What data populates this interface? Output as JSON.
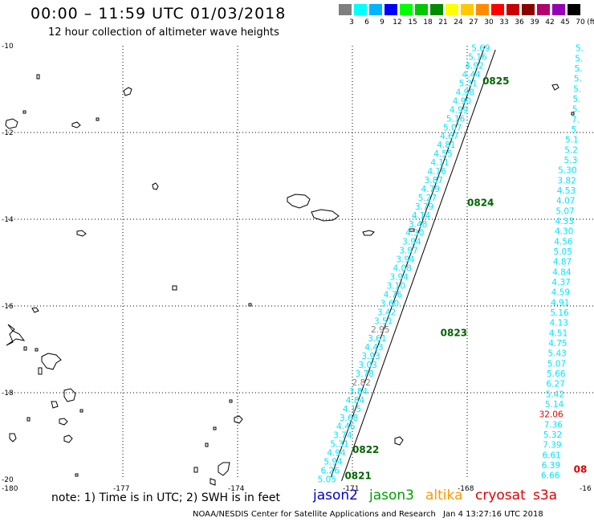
{
  "header": {
    "title": "00:00 – 11:59 UTC 01/03/2018",
    "subtitle": "12 hour collection of altimeter wave heights"
  },
  "legend": {
    "unit": "(ft)",
    "bins": [
      {
        "label": "3",
        "color": "#7f7f7f"
      },
      {
        "label": "6",
        "color": "#00ffff"
      },
      {
        "label": "9",
        "color": "#00b4ff"
      },
      {
        "label": "12",
        "color": "#0000ff"
      },
      {
        "label": "15",
        "color": "#00ff00"
      },
      {
        "label": "18",
        "color": "#00c800"
      },
      {
        "label": "21",
        "color": "#008c00"
      },
      {
        "label": "24",
        "color": "#ffff00"
      },
      {
        "label": "27",
        "color": "#ffc800"
      },
      {
        "label": "30",
        "color": "#ff8c00"
      },
      {
        "label": "33",
        "color": "#ff0000"
      },
      {
        "label": "36",
        "color": "#c80000"
      },
      {
        "label": "39",
        "color": "#8c0000"
      },
      {
        "label": "42",
        "color": "#b4006e"
      },
      {
        "label": "45",
        "color": "#9600b4"
      },
      {
        "label": "70",
        "color": "#000000"
      }
    ]
  },
  "axes": {
    "lon_ticks": [
      {
        "lon": -180,
        "label": "-180"
      },
      {
        "lon": -177,
        "label": "-177"
      },
      {
        "lon": -174,
        "label": "-174"
      },
      {
        "lon": -171,
        "label": "-171"
      },
      {
        "lon": -168,
        "label": "-168"
      },
      {
        "lon": -165,
        "label": "-16"
      }
    ],
    "lat_ticks": [
      {
        "lat": -10,
        "label": "-10"
      },
      {
        "lat": -12,
        "label": "-12"
      },
      {
        "lat": -14,
        "label": "-14"
      },
      {
        "lat": -16,
        "label": "-16"
      },
      {
        "lat": -18,
        "label": "-18"
      },
      {
        "lat": -20,
        "label": "-20"
      }
    ]
  },
  "colors": {
    "cyan": "#00e5ff",
    "gray": "#7f7f7f",
    "red": "#e00000",
    "green": "#007f00",
    "time": "#006400"
  },
  "track_west": {
    "start": {
      "lon": -167.4,
      "lat": -10.05
    },
    "end": {
      "lon": -171.42,
      "lat": -19.99
    },
    "labels": [
      {
        "v": "5.69",
        "c": "cyan"
      },
      {
        "v": "5.16",
        "c": "cyan"
      },
      {
        "v": "4.92",
        "c": "cyan"
      },
      {
        "v": "4.44",
        "c": "cyan"
      },
      {
        "v": "5.31",
        "c": "cyan"
      },
      {
        "v": "4.98",
        "c": "cyan"
      },
      {
        "v": "4.90",
        "c": "cyan"
      },
      {
        "v": "4.99",
        "c": "cyan"
      },
      {
        "v": "5.16",
        "c": "cyan"
      },
      {
        "v": "5.07",
        "c": "cyan"
      },
      {
        "v": "4.67",
        "c": "cyan"
      },
      {
        "v": "4.81",
        "c": "cyan"
      },
      {
        "v": "4.55",
        "c": "cyan"
      },
      {
        "v": "4.11",
        "c": "cyan"
      },
      {
        "v": "4.16",
        "c": "cyan"
      },
      {
        "v": "3.87",
        "c": "cyan"
      },
      {
        "v": "4.79",
        "c": "cyan"
      },
      {
        "v": "5.27",
        "c": "cyan"
      },
      {
        "v": "3.79",
        "c": "cyan"
      },
      {
        "v": "4.14",
        "c": "cyan"
      },
      {
        "v": "3.48",
        "c": "cyan"
      },
      {
        "v": "4.30",
        "c": "cyan"
      },
      {
        "v": "3.94",
        "c": "cyan"
      },
      {
        "v": "3.97",
        "c": "cyan"
      },
      {
        "v": "3.94",
        "c": "cyan"
      },
      {
        "v": "4.08",
        "c": "cyan"
      },
      {
        "v": "3.94",
        "c": "cyan"
      },
      {
        "v": "3.10",
        "c": "cyan"
      },
      {
        "v": "4.76",
        "c": "cyan"
      },
      {
        "v": "3.60",
        "c": "cyan"
      },
      {
        "v": "3.42",
        "c": "cyan"
      },
      {
        "v": "3.51",
        "c": "cyan"
      },
      {
        "v": "2.95",
        "c": "gray"
      },
      {
        "v": "3.61",
        "c": "cyan"
      },
      {
        "v": "4.43",
        "c": "cyan"
      },
      {
        "v": "3.93",
        "c": "cyan"
      },
      {
        "v": "3.03",
        "c": "cyan"
      },
      {
        "v": "3.78",
        "c": "cyan"
      },
      {
        "v": "2.82",
        "c": "gray"
      },
      {
        "v": "3.84",
        "c": "cyan"
      },
      {
        "v": "4.84",
        "c": "cyan"
      },
      {
        "v": "4.15",
        "c": "cyan"
      },
      {
        "v": "3.68",
        "c": "cyan"
      },
      {
        "v": "4.46",
        "c": "cyan"
      },
      {
        "v": "3.74",
        "c": "cyan"
      },
      {
        "v": "5.31",
        "c": "cyan"
      },
      {
        "v": "4.94",
        "c": "cyan"
      },
      {
        "v": "5.94",
        "c": "cyan"
      },
      {
        "v": "6.26",
        "c": "cyan"
      },
      {
        "v": "5.05",
        "c": "cyan"
      }
    ],
    "times": [
      {
        "t": "0825",
        "lat": -10.8,
        "lon": -167.6
      },
      {
        "t": "0824",
        "lat": -13.6,
        "lon": -168.0
      },
      {
        "t": "0823",
        "lat": -16.6,
        "lon": -168.7
      },
      {
        "t": "0822",
        "lat": -19.3,
        "lon": -171.0
      },
      {
        "t": "0821",
        "lat": -19.9,
        "lon": -171.2
      }
    ]
  },
  "track_east": {
    "start": {
      "lon": -165.0,
      "lat": -10.05
    },
    "end": {
      "lon": -165.62,
      "lat": -19.9
    },
    "labels": [
      {
        "v": "5.",
        "c": "cyan"
      },
      {
        "v": "5.",
        "c": "cyan"
      },
      {
        "v": "5.",
        "c": "cyan"
      },
      {
        "v": "5.",
        "c": "cyan"
      },
      {
        "v": "5.",
        "c": "cyan"
      },
      {
        "v": "5.",
        "c": "cyan"
      },
      {
        "v": "5.",
        "c": "cyan"
      },
      {
        "v": "7.",
        "c": "cyan"
      },
      {
        "v": "5.",
        "c": "cyan"
      },
      {
        "v": "5.1",
        "c": "cyan"
      },
      {
        "v": "5.2",
        "c": "cyan"
      },
      {
        "v": "5.3",
        "c": "cyan"
      },
      {
        "v": "5.30",
        "c": "cyan"
      },
      {
        "v": "3.82",
        "c": "cyan"
      },
      {
        "v": "4.53",
        "c": "cyan"
      },
      {
        "v": "4.07",
        "c": "cyan"
      },
      {
        "v": "5.07",
        "c": "cyan"
      },
      {
        "v": "4.33",
        "c": "cyan"
      },
      {
        "v": "4.30",
        "c": "cyan"
      },
      {
        "v": "4.56",
        "c": "cyan"
      },
      {
        "v": "5.05",
        "c": "cyan"
      },
      {
        "v": "4.87",
        "c": "cyan"
      },
      {
        "v": "4.84",
        "c": "cyan"
      },
      {
        "v": "4.37",
        "c": "cyan"
      },
      {
        "v": "4.59",
        "c": "cyan"
      },
      {
        "v": "4.91",
        "c": "cyan"
      },
      {
        "v": "5.16",
        "c": "cyan"
      },
      {
        "v": "4.13",
        "c": "cyan"
      },
      {
        "v": "4.51",
        "c": "cyan"
      },
      {
        "v": "4.75",
        "c": "cyan"
      },
      {
        "v": "5.43",
        "c": "cyan"
      },
      {
        "v": "5.07",
        "c": "cyan"
      },
      {
        "v": "5.66",
        "c": "cyan"
      },
      {
        "v": "6.27",
        "c": "cyan"
      },
      {
        "v": "5.42",
        "c": "cyan"
      },
      {
        "v": "5.14",
        "c": "cyan"
      },
      {
        "v": "32.06",
        "c": "red"
      },
      {
        "v": "7.36",
        "c": "cyan"
      },
      {
        "v": "5.32",
        "c": "cyan"
      },
      {
        "v": "7.39",
        "c": "cyan"
      },
      {
        "v": "6.61",
        "c": "cyan"
      },
      {
        "v": "6.39",
        "c": "cyan"
      },
      {
        "v": "6.66",
        "c": "cyan"
      }
    ],
    "extra": {
      "t": "08",
      "lat": -19.88,
      "lon": -165.05
    }
  },
  "footer": {
    "note": "note: 1) Time is in UTC; 2) SWH is in feet",
    "satellites": [
      {
        "name": "jason2",
        "color": "#0000cc"
      },
      {
        "name": "jason3",
        "color": "#00a000"
      },
      {
        "name": "altika",
        "color": "#ff9900"
      },
      {
        "name": "cryosat",
        "color": "#e00000"
      },
      {
        "name": "s3a",
        "color": "#e00000"
      }
    ],
    "credit": "NOAA/NESDIS Center for Satellite Applications and Research",
    "timestamp": "Jan  4 13:27:16 UTC 2018"
  }
}
